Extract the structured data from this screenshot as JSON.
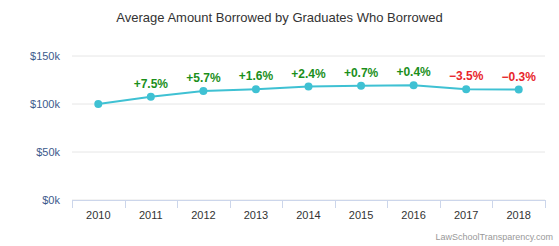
{
  "chart_data": {
    "type": "line",
    "title": "Average Amount Borrowed by Graduates Who Borrowed",
    "source": "LawSchoolTransparency.com",
    "categories": [
      "2010",
      "2011",
      "2012",
      "2013",
      "2014",
      "2015",
      "2016",
      "2017",
      "2018"
    ],
    "values": [
      100000,
      107500,
      113600,
      115400,
      118200,
      119000,
      119500,
      115300,
      115000
    ],
    "changes": [
      null,
      7.5,
      5.7,
      1.6,
      2.4,
      0.7,
      0.4,
      -3.5,
      -0.3
    ],
    "change_labels": [
      null,
      "+7.5%",
      "+5.7%",
      "+1.6%",
      "+2.4%",
      "+0.7%",
      "+0.4%",
      "−3.5%",
      "−0.3%"
    ],
    "color": "#3fc1d3",
    "marker": "circle",
    "ylim": [
      0,
      150000
    ],
    "yticks": [
      {
        "value": 0,
        "label": "$0k"
      },
      {
        "value": 50000,
        "label": "$50k"
      },
      {
        "value": 100000,
        "label": "$100k"
      },
      {
        "value": 150000,
        "label": "$150k"
      }
    ],
    "grid": true
  }
}
